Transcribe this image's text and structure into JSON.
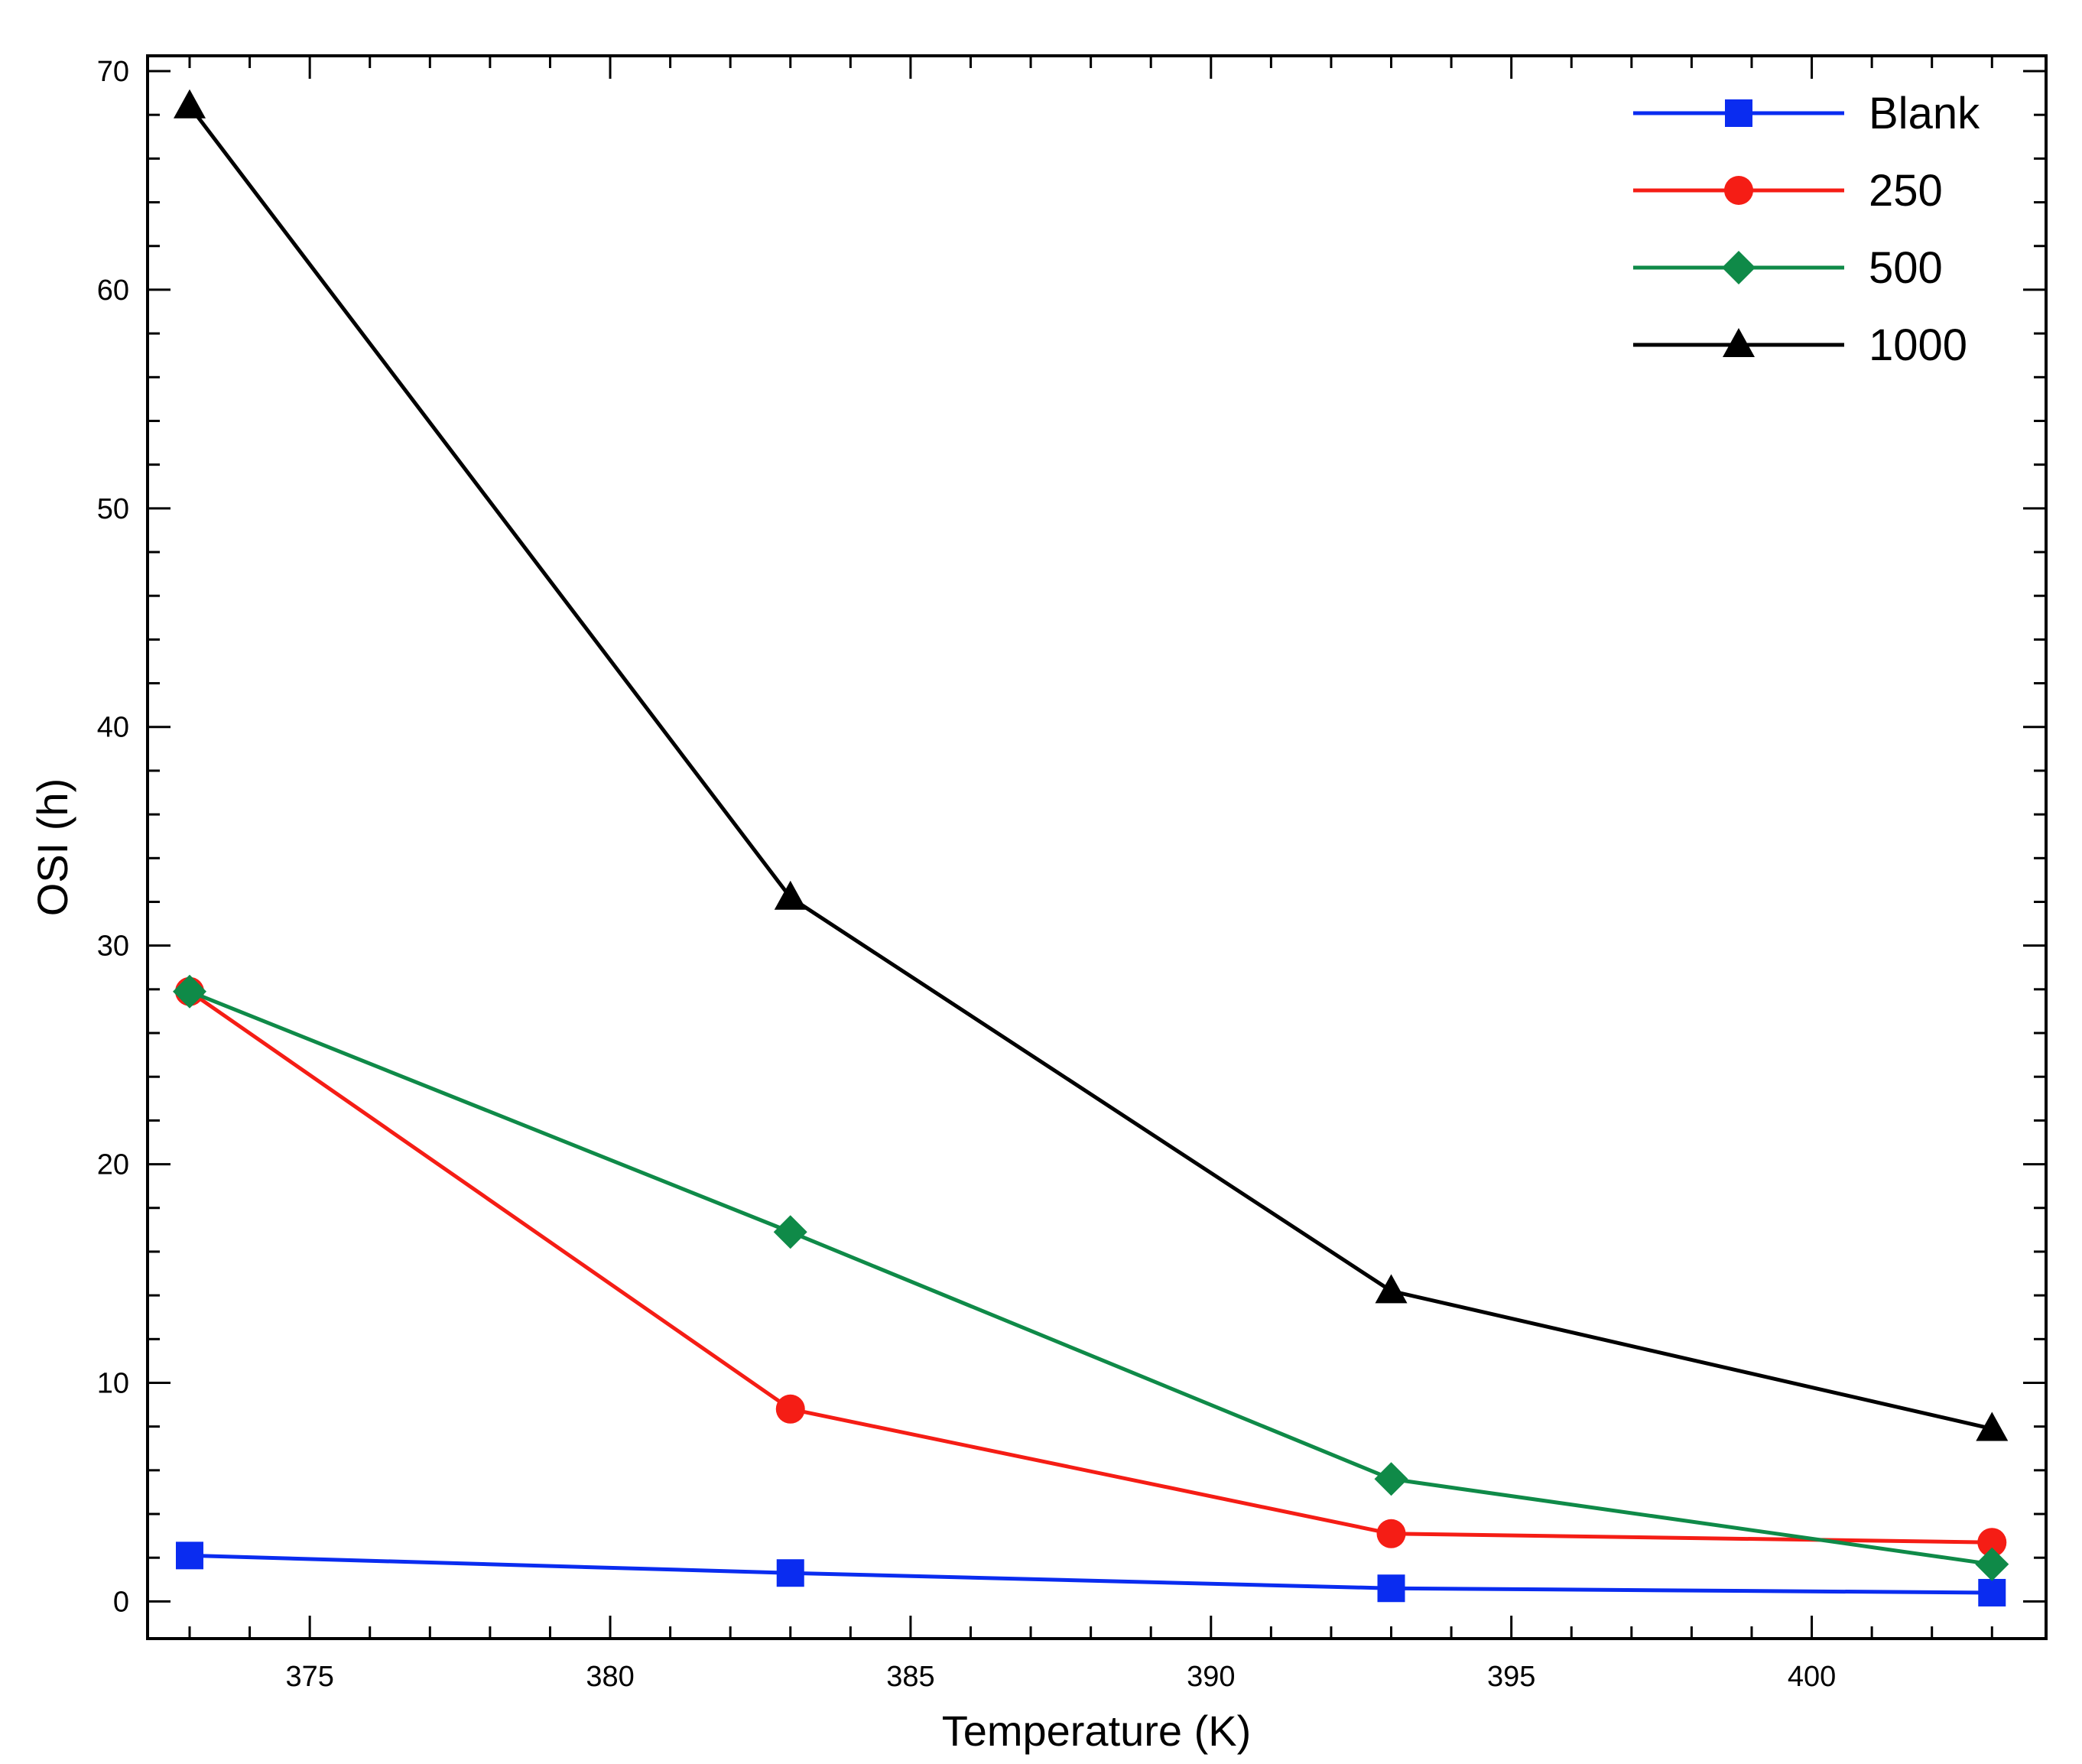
{
  "chart_data": {
    "type": "line",
    "title": "",
    "xlabel": "Temperature (K)",
    "ylabel": "OSI (h)",
    "xlim": [
      372.3,
      403.9
    ],
    "ylim": [
      -1.7,
      70.7
    ],
    "xticks": [
      375,
      380,
      385,
      390,
      395,
      400
    ],
    "xtick_labels": [
      "375",
      "380",
      "385",
      "390",
      "395",
      "400"
    ],
    "yticks": [
      0,
      10,
      20,
      30,
      40,
      50,
      60,
      70
    ],
    "ytick_labels": [
      "0",
      "10",
      "20",
      "30",
      "40",
      "50",
      "60",
      "70"
    ],
    "grid": false,
    "legend_position": "top-right",
    "x": [
      373,
      383,
      393,
      403
    ],
    "series": [
      {
        "name": "Blank",
        "values": [
          2.1,
          1.3,
          0.6,
          0.4
        ],
        "color": "#0a2cf0",
        "marker": "square"
      },
      {
        "name": "250",
        "values": [
          27.9,
          8.8,
          3.1,
          2.7
        ],
        "color": "#f51d15",
        "marker": "circle"
      },
      {
        "name": "500",
        "values": [
          27.9,
          16.9,
          5.6,
          1.7
        ],
        "color": "#0f8a48",
        "marker": "diamond"
      },
      {
        "name": "1000",
        "values": [
          68.4,
          32.2,
          14.2,
          7.9
        ],
        "color": "#000000",
        "marker": "triangle"
      }
    ]
  }
}
